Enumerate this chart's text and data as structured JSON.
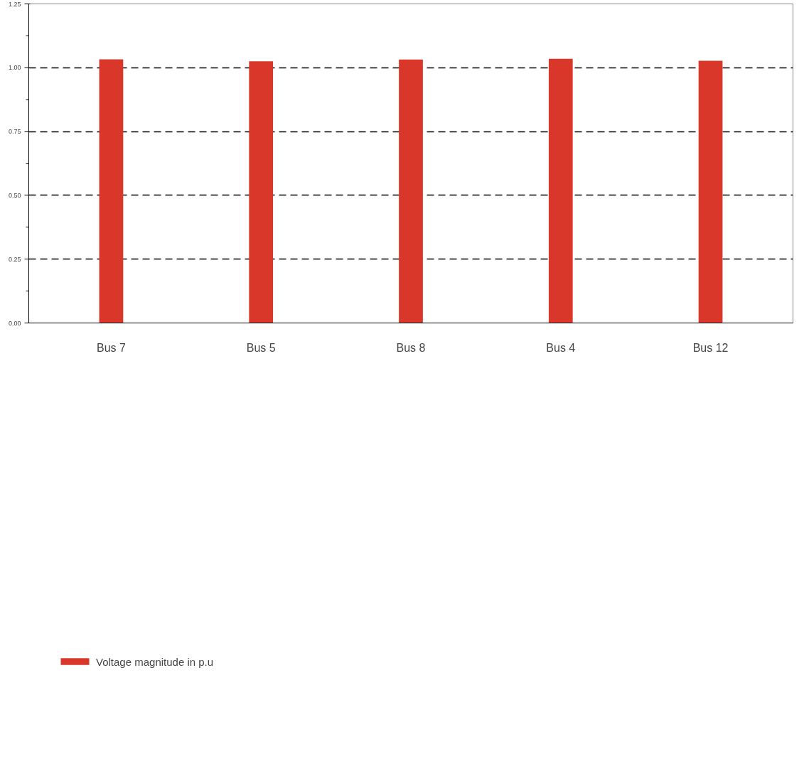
{
  "chart_data": {
    "type": "bar",
    "categories": [
      "Bus 7",
      "Bus 5",
      "Bus 8",
      "Bus 4",
      "Bus 12"
    ],
    "series": [
      {
        "name": "Voltage magnitude in p.u",
        "color": "#d9372a",
        "values": [
          1.033,
          1.025,
          1.032,
          1.035,
          1.027
        ]
      }
    ],
    "ylim": [
      0,
      1.25
    ],
    "yticks": [
      {
        "value": 0,
        "label": "0.00"
      },
      {
        "value": 0.125,
        "label": null
      },
      {
        "value": 0.25,
        "label": "0.25"
      },
      {
        "value": 0.375,
        "label": null
      },
      {
        "value": 0.5,
        "label": "0.50"
      },
      {
        "value": 0.625,
        "label": null
      },
      {
        "value": 0.75,
        "label": "0.75"
      },
      {
        "value": 0.875,
        "label": null
      },
      {
        "value": 1.0,
        "label": "1.00"
      },
      {
        "value": 1.125,
        "label": null
      },
      {
        "value": 1.25,
        "label": "1.25"
      }
    ],
    "grid": "y",
    "line_style": "dashed",
    "legend": "bottom left"
  }
}
